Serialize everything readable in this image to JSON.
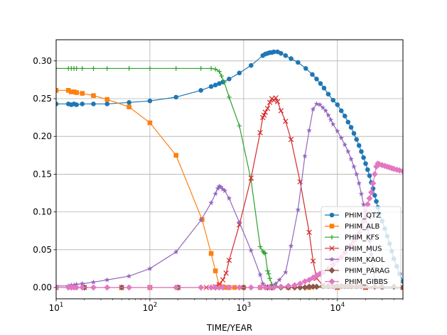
{
  "chart_data": {
    "type": "line",
    "title": "",
    "xlabel": "TIME/YEAR",
    "ylabel": "",
    "xscale": "log",
    "xlim": [
      10,
      50000
    ],
    "ylim": [
      -0.015,
      0.328
    ],
    "grid": true,
    "legend_position": "bottom-right",
    "x_ticks": [
      {
        "value": 10,
        "base": "10",
        "exp": "1"
      },
      {
        "value": 100,
        "base": "10",
        "exp": "2"
      },
      {
        "value": 1000,
        "base": "10",
        "exp": "3"
      },
      {
        "value": 10000,
        "base": "10",
        "exp": "4"
      }
    ],
    "y_ticks": [
      {
        "value": 0.0,
        "label": "0.00"
      },
      {
        "value": 0.05,
        "label": "0.05"
      },
      {
        "value": 0.1,
        "label": "0.10"
      },
      {
        "value": 0.15,
        "label": "0.15"
      },
      {
        "value": 0.2,
        "label": "0.20"
      },
      {
        "value": 0.25,
        "label": "0.25"
      },
      {
        "value": 0.3,
        "label": "0.30"
      }
    ],
    "series": [
      {
        "name": "PHIM_QTZ",
        "color": "#1f77b4",
        "marker": "circle",
        "x": [
          10,
          13.5,
          14.5,
          15.5,
          16.5,
          19,
          25,
          35,
          60,
          100,
          190,
          350,
          450,
          500,
          550,
          600,
          700,
          900,
          1200,
          1600,
          1700,
          1800,
          1900,
          2000,
          2100,
          2300,
          2500,
          2800,
          3200,
          3800,
          4600,
          5400,
          6000,
          6600,
          7200,
          8000,
          9000,
          10000,
          11000,
          12000,
          13000,
          14000,
          15000,
          16000,
          17000,
          18000,
          19000,
          20000,
          21000,
          22000,
          23000,
          24000,
          25000,
          26000,
          27000,
          28000,
          30000,
          32000,
          34000,
          36000,
          38000,
          40000,
          43000,
          46000,
          50000
        ],
        "y": [
          0.243,
          0.243,
          0.242,
          0.243,
          0.242,
          0.243,
          0.243,
          0.243,
          0.245,
          0.247,
          0.252,
          0.261,
          0.266,
          0.268,
          0.27,
          0.272,
          0.276,
          0.284,
          0.294,
          0.307,
          0.309,
          0.31,
          0.311,
          0.311,
          0.312,
          0.312,
          0.31,
          0.307,
          0.303,
          0.298,
          0.29,
          0.282,
          0.276,
          0.27,
          0.264,
          0.256,
          0.248,
          0.242,
          0.234,
          0.227,
          0.219,
          0.212,
          0.204,
          0.196,
          0.188,
          0.18,
          0.172,
          0.164,
          0.156,
          0.148,
          0.139,
          0.131,
          0.122,
          0.114,
          0.106,
          0.098,
          0.088,
          0.078,
          0.068,
          0.058,
          0.048,
          0.038,
          0.028,
          0.018,
          0.008
        ]
      },
      {
        "name": "PHIM_ALB",
        "color": "#ff7f0e",
        "marker": "square",
        "x": [
          10,
          13.5,
          14.5,
          15.5,
          16.5,
          19,
          25,
          35,
          60,
          100,
          190,
          360,
          450,
          500,
          550,
          600,
          650,
          700,
          800,
          1000,
          1500,
          2000,
          3000,
          5000,
          10000,
          20000,
          50000
        ],
        "y": [
          0.261,
          0.261,
          0.259,
          0.259,
          0.258,
          0.257,
          0.254,
          0.249,
          0.239,
          0.218,
          0.175,
          0.09,
          0.045,
          0.022,
          0.003,
          0.001,
          0.0,
          0.0,
          0.0,
          0.0,
          0.0,
          0.0,
          0.0,
          0.0,
          0.0,
          0.0,
          0.0
        ]
      },
      {
        "name": "PHIM_KFS",
        "color": "#2ca02c",
        "marker": "plus",
        "x": [
          10,
          13.5,
          14.5,
          15.5,
          16.5,
          19,
          25,
          35,
          60,
          100,
          190,
          350,
          450,
          500,
          550,
          580,
          620,
          700,
          900,
          1200,
          1500,
          1600,
          1650,
          1700,
          1800,
          1850,
          1900,
          2000,
          2500,
          5000,
          10000,
          20000,
          50000
        ],
        "y": [
          0.29,
          0.29,
          0.29,
          0.29,
          0.29,
          0.29,
          0.29,
          0.29,
          0.29,
          0.29,
          0.29,
          0.29,
          0.29,
          0.289,
          0.286,
          0.28,
          0.272,
          0.252,
          0.214,
          0.142,
          0.054,
          0.048,
          0.046,
          0.045,
          0.022,
          0.018,
          0.012,
          0.004,
          0.0,
          0.0,
          0.0,
          0.0,
          0.0
        ]
      },
      {
        "name": "PHIM_MUS",
        "color": "#d62728",
        "marker": "x",
        "x": [
          10,
          20,
          50,
          100,
          200,
          400,
          500,
          550,
          600,
          650,
          700,
          900,
          1200,
          1500,
          1600,
          1650,
          1700,
          1800,
          1900,
          2000,
          2100,
          2200,
          2300,
          2500,
          2800,
          3200,
          4000,
          5000,
          5500,
          6000,
          7000,
          10000,
          20000,
          50000
        ],
        "y": [
          0.0,
          0.0,
          0.0,
          0.0,
          0.0,
          0.0,
          0.001,
          0.004,
          0.01,
          0.019,
          0.036,
          0.083,
          0.145,
          0.205,
          0.225,
          0.228,
          0.232,
          0.237,
          0.245,
          0.25,
          0.248,
          0.251,
          0.246,
          0.234,
          0.22,
          0.196,
          0.14,
          0.073,
          0.035,
          0.012,
          0.003,
          0.0,
          0.0,
          0.0
        ]
      },
      {
        "name": "PHIM_KAOL",
        "color": "#9467bd",
        "marker": "star",
        "x": [
          10,
          13.5,
          14.5,
          15.5,
          16.5,
          19,
          25,
          35,
          60,
          100,
          190,
          350,
          450,
          500,
          530,
          550,
          570,
          600,
          630,
          700,
          900,
          1200,
          1500,
          1600,
          1700,
          1800,
          1900,
          2000,
          2200,
          2400,
          2800,
          3200,
          3800,
          4500,
          5000,
          5500,
          6000,
          6500,
          7000,
          7500,
          8000,
          8500,
          9000,
          10000,
          11000,
          12000,
          13000,
          14000,
          15000,
          16000,
          17000,
          18000,
          19000,
          20000,
          21000,
          22000,
          23000,
          24000,
          25000,
          30000,
          50000
        ],
        "y": [
          0.002,
          0.002,
          0.003,
          0.003,
          0.004,
          0.005,
          0.007,
          0.01,
          0.015,
          0.025,
          0.047,
          0.089,
          0.112,
          0.124,
          0.131,
          0.134,
          0.133,
          0.13,
          0.128,
          0.118,
          0.086,
          0.049,
          0.017,
          0.005,
          0.002,
          0.001,
          0.001,
          0.002,
          0.005,
          0.01,
          0.02,
          0.055,
          0.103,
          0.174,
          0.208,
          0.236,
          0.243,
          0.242,
          0.238,
          0.234,
          0.228,
          0.222,
          0.216,
          0.207,
          0.198,
          0.189,
          0.18,
          0.17,
          0.16,
          0.15,
          0.138,
          0.124,
          0.11,
          0.094,
          0.078,
          0.062,
          0.044,
          0.026,
          0.01,
          0.0,
          0.0
        ]
      },
      {
        "name": "PHIM_PARAG",
        "color": "#8c564b",
        "marker": "diamond",
        "x": [
          10,
          20,
          50,
          100,
          200,
          500,
          1000,
          1800,
          2000,
          2500,
          3000,
          3500,
          4000,
          4500,
          5000,
          5500,
          6000,
          7000,
          8000,
          9000,
          10000,
          11000,
          12000,
          13000,
          14000,
          16000,
          18000,
          20000,
          25000,
          30000,
          40000,
          50000
        ],
        "y": [
          0.0,
          0.0,
          0.0,
          0.0,
          0.0,
          0.0,
          0.0,
          0.0,
          0.0,
          0.0,
          0.0,
          0.0,
          0.0,
          0.0,
          0.001,
          0.001,
          0.001,
          0.002,
          0.002,
          0.002,
          0.002,
          0.002,
          0.002,
          0.002,
          0.002,
          0.002,
          0.002,
          0.001,
          0.001,
          0.001,
          0.001,
          0.0
        ]
      },
      {
        "name": "PHIM_GIBBS",
        "color": "#e377c2",
        "marker": "diamond",
        "x": [
          10,
          13.5,
          14.5,
          15.5,
          16.5,
          19,
          25,
          35,
          60,
          100,
          190,
          350,
          450,
          500,
          550,
          600,
          700,
          900,
          1200,
          1500,
          1700,
          1900,
          2100,
          2500,
          3000,
          3500,
          4000,
          4500,
          5000,
          5500,
          6000,
          6500,
          7000,
          8000,
          9000,
          10000,
          11000,
          12000,
          13000,
          14000,
          15000,
          16000,
          17000,
          18000,
          19000,
          20000,
          21000,
          22000,
          23000,
          24000,
          25000,
          26000,
          27000,
          28000,
          30000,
          32000,
          34000,
          36000,
          38000,
          40000,
          43000,
          46000,
          50000
        ],
        "y": [
          0.0,
          0.0,
          0.0,
          0.0,
          0.0,
          0.0,
          0.0,
          0.0,
          0.0,
          0.0,
          0.0,
          0.0,
          0.0,
          0.0,
          0.0,
          0.0,
          0.0,
          0.0,
          0.0,
          0.0,
          0.0,
          0.0,
          0.0,
          0.001,
          0.002,
          0.003,
          0.005,
          0.008,
          0.01,
          0.013,
          0.016,
          0.018,
          0.02,
          0.025,
          0.03,
          0.036,
          0.04,
          0.046,
          0.052,
          0.056,
          0.062,
          0.066,
          0.072,
          0.08,
          0.088,
          0.1,
          0.11,
          0.118,
          0.126,
          0.138,
          0.15,
          0.16,
          0.164,
          0.163,
          0.162,
          0.161,
          0.16,
          0.159,
          0.158,
          0.157,
          0.156,
          0.155,
          0.154
        ]
      }
    ]
  }
}
